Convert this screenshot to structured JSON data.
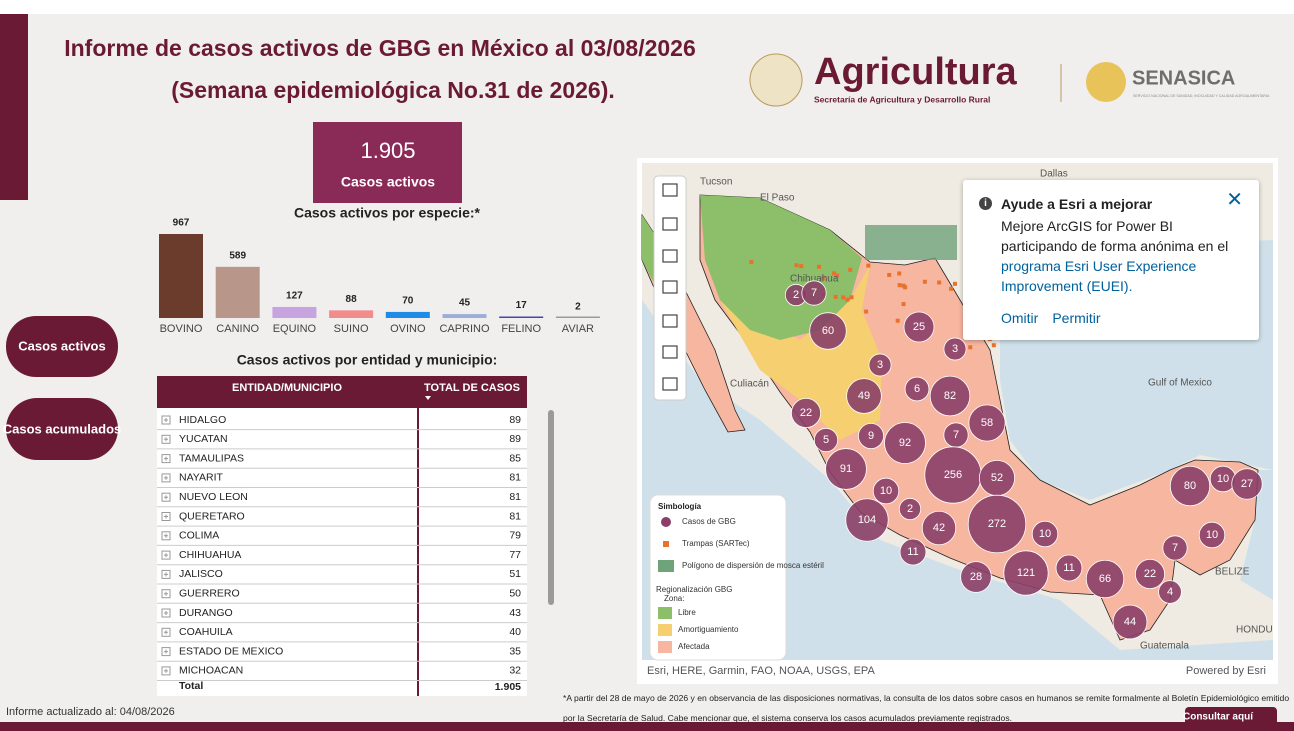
{
  "header": {
    "title_line1": "Informe de casos activos de GBG en México al 03/08/2026",
    "title_line2": "(Semana epidemiológica No.31 de 2026).",
    "logo_agricultura": "Agricultura",
    "logo_agricultura_sub": "Secretaría de Agricultura y Desarrollo Rural",
    "logo_senasica": "SENASICA",
    "logo_senasica_sub": "SERVICIO NACIONAL DE SANIDAD, INOCUIDAD Y CALIDAD AGROALIMENTARIA"
  },
  "kpi": {
    "value": "1.905",
    "label": "Casos activos"
  },
  "nav": {
    "buttons": [
      "Casos activos",
      "Casos acumulados"
    ]
  },
  "chart_data": {
    "type": "bar",
    "title": "Casos activos por especie:*",
    "categories": [
      "BOVINO",
      "CANINO",
      "EQUINO",
      "SUINO",
      "OVINO",
      "CAPRINO",
      "FELINO",
      "AVIAR"
    ],
    "values": [
      967,
      589,
      127,
      88,
      70,
      45,
      17,
      2
    ],
    "colors": [
      "#6b3b2b",
      "#b89689",
      "#c7a3df",
      "#f28b8b",
      "#1f8be6",
      "#9aaed8",
      "#3d4aa8",
      "#9a9a9a"
    ]
  },
  "table": {
    "title": "Casos activos por entidad y municipio:",
    "columns": [
      "ENTIDAD/MUNICIPIO",
      "TOTAL DE CASOS"
    ],
    "rows": [
      [
        "HIDALGO",
        89
      ],
      [
        "YUCATAN",
        89
      ],
      [
        "TAMAULIPAS",
        85
      ],
      [
        "NAYARIT",
        81
      ],
      [
        "NUEVO LEON",
        81
      ],
      [
        "QUERETARO",
        81
      ],
      [
        "COLIMA",
        79
      ],
      [
        "CHIHUAHUA",
        77
      ],
      [
        "JALISCO",
        51
      ],
      [
        "GUERRERO",
        50
      ],
      [
        "DURANGO",
        43
      ],
      [
        "COAHUILA",
        40
      ],
      [
        "ESTADO DE MEXICO",
        35
      ],
      [
        "MICHOACAN",
        32
      ]
    ],
    "total": [
      "Total",
      "1.905"
    ]
  },
  "map": {
    "places": [
      "Dallas",
      "El Paso",
      "Tucson",
      "Chihuahua",
      "Culiacán",
      "Gulf of Mexico",
      "BELIZE",
      "Guatemala",
      "HONDU"
    ],
    "clusters": [
      2,
      7,
      60,
      25,
      3,
      3,
      6,
      49,
      82,
      58,
      22,
      5,
      9,
      92,
      7,
      91,
      256,
      52,
      10,
      104,
      2,
      42,
      272,
      11,
      10,
      28,
      121,
      11,
      66,
      7,
      22,
      4,
      44,
      80,
      10,
      27,
      10
    ],
    "legend": {
      "title": "Simbología",
      "items": [
        {
          "label": "Casos de GBG",
          "color": "#8a3f67"
        },
        {
          "label": "Trampas (SARTec)",
          "color": "#e8722c"
        },
        {
          "label": "Polígono de dispersión de mosca estéril",
          "color": "#6fa37a"
        }
      ],
      "zone_title": "Regionalización GBG",
      "zone_subtitle": "Zona:",
      "zones": [
        {
          "label": "Libre",
          "color": "#8dbf6a"
        },
        {
          "label": "Amortiguamiento",
          "color": "#f5cf70"
        },
        {
          "label": "Afectada",
          "color": "#f7b6a0"
        }
      ]
    },
    "attribution": "Esri, HERE, Garmin, FAO, NOAA, USGS, EPA",
    "powered": "Powered by Esri"
  },
  "popup": {
    "title": "Ayude a Esri a mejorar",
    "body": "Mejore ArcGIS for Power BI participando de forma anónima en el",
    "link": "programa Esri User Experience Improvement (EUEI).",
    "buttons": [
      "Omitir",
      "Permitir"
    ]
  },
  "footer": {
    "updated": "Informe actualizado al: 04/08/2026",
    "note": "*A partir del 28 de mayo de 2026 y en observancia de las disposiciones normativas, la consulta de los datos sobre casos en humanos se remite formalmente al Boletín Epidemiológico emitido por la Secretaría de Salud. Cabe mencionar que, el sistema conserva los casos acumulados previamente registrados.",
    "button": "Consultar aquí"
  }
}
